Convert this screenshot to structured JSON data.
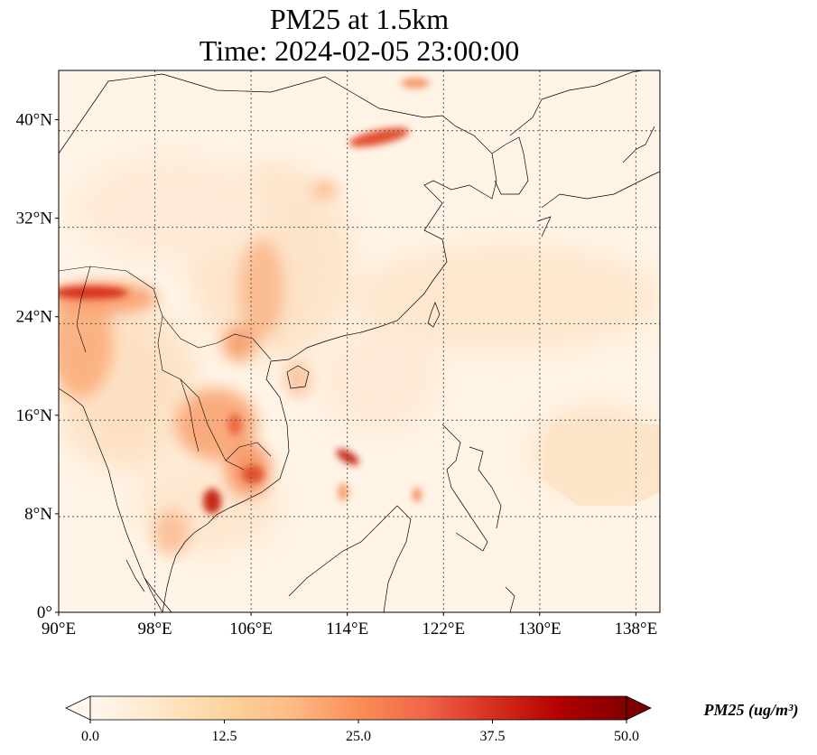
{
  "title_line1": "PM25 at 1.5km",
  "title_line2": "Time: 2024-02-05 23:00:00",
  "map": {
    "lon_range": [
      90,
      140
    ],
    "lat_range": [
      0,
      44
    ],
    "x_ticks": [
      "90°E",
      "98°E",
      "106°E",
      "114°E",
      "122°E",
      "130°E",
      "138°E"
    ],
    "y_ticks": [
      "0°",
      "8°N",
      "16°N",
      "24°N",
      "32°N",
      "40°N"
    ],
    "gridlines": true,
    "colormap": "OrRd"
  },
  "colorbar": {
    "label": "PM25 (ug/m³)",
    "ticks": [
      "0.0",
      "12.5",
      "25.0",
      "37.5",
      "50.0"
    ],
    "range": [
      0,
      50
    ],
    "extend": "both",
    "colors": [
      "#fff7ec",
      "#fee8c8",
      "#fdd49e",
      "#fdbb84",
      "#fc8d59",
      "#ef6548",
      "#d7301f",
      "#b30000",
      "#7f0000"
    ]
  }
}
